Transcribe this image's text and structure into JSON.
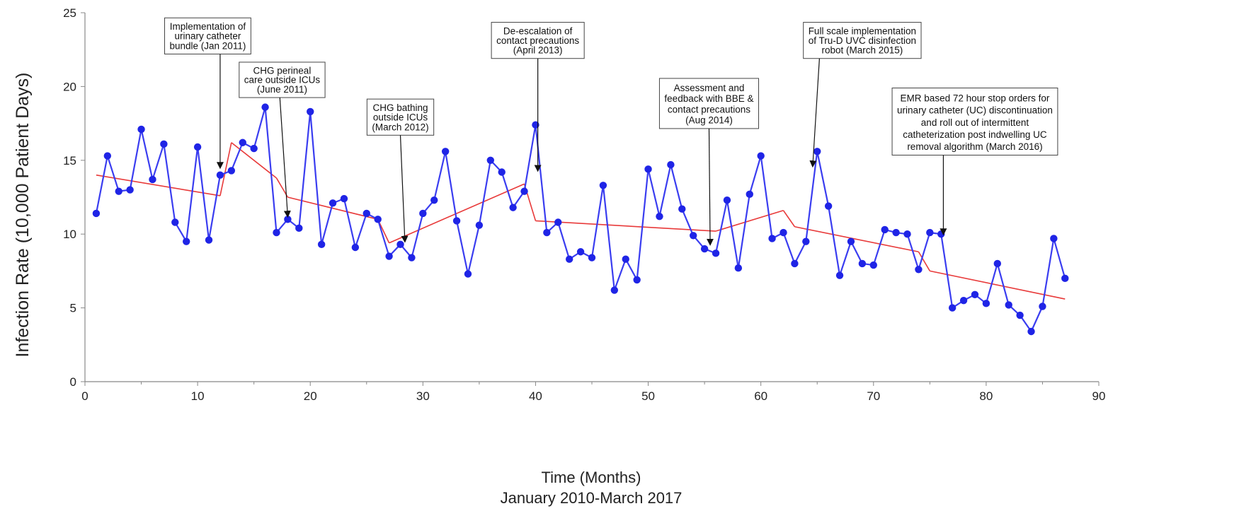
{
  "chart_data": {
    "type": "line",
    "xlabel": "Time (Months)",
    "xlabel_sub": "January 2010-March 2017",
    "ylabel": "Infection Rate (10,000 Patient Days)",
    "xlim": [
      0,
      90
    ],
    "ylim": [
      0,
      25
    ],
    "x_ticks": [
      0,
      10,
      20,
      30,
      40,
      50,
      60,
      70,
      80,
      90
    ],
    "y_ticks": [
      0,
      5,
      10,
      15,
      20,
      25
    ],
    "grid": false,
    "colors": {
      "series": "#3a3df0",
      "marker": "#1f24e6",
      "trend": "#e83a3a"
    },
    "series": [
      {
        "x": [
          1,
          2,
          3,
          4,
          5,
          6,
          7,
          8,
          9,
          10,
          11,
          12,
          13,
          14,
          15,
          16,
          17,
          18,
          19,
          20,
          21,
          22,
          23,
          24,
          25,
          26,
          27,
          28,
          29,
          30,
          31,
          32,
          33,
          34,
          35,
          36,
          37,
          38,
          39,
          40,
          41,
          42,
          43,
          44,
          45,
          46,
          47,
          48,
          49,
          50,
          51,
          52,
          53,
          54,
          55,
          56,
          57,
          58,
          59,
          60,
          61,
          62,
          63,
          64,
          65,
          66,
          67,
          68,
          69,
          70,
          71,
          72,
          73,
          74,
          75,
          76,
          77,
          78,
          79,
          80,
          81,
          82,
          83,
          84,
          85,
          86,
          87
        ],
        "values": [
          11.4,
          15.3,
          12.9,
          13.0,
          17.1,
          13.7,
          16.1,
          10.8,
          9.5,
          15.9,
          9.6,
          14.0,
          14.3,
          16.2,
          15.8,
          18.6,
          10.1,
          11.0,
          10.4,
          18.3,
          9.3,
          12.1,
          12.4,
          9.1,
          11.4,
          11.0,
          8.5,
          9.3,
          8.4,
          11.4,
          12.3,
          15.6,
          10.9,
          7.3,
          10.6,
          15.0,
          14.2,
          11.8,
          12.9,
          17.4,
          10.1,
          10.8,
          8.3,
          8.8,
          8.4,
          13.3,
          6.2,
          8.3,
          6.9,
          14.4,
          11.2,
          14.7,
          11.7,
          9.9,
          9.0,
          8.7,
          12.3,
          7.7,
          12.7,
          15.3,
          9.7,
          10.1,
          8.0,
          9.5,
          15.6,
          11.9,
          7.2,
          9.5,
          8.0,
          7.9,
          10.3,
          10.1,
          10.0,
          7.6,
          10.1,
          10.0,
          5.0,
          5.5,
          5.9,
          5.3,
          8.0,
          5.2,
          4.5,
          3.4,
          5.1,
          9.7,
          7.0
        ]
      }
    ],
    "trend_segments": [
      {
        "x": [
          1,
          12
        ],
        "values": [
          14.0,
          12.6
        ]
      },
      {
        "x": [
          12,
          13
        ],
        "values": [
          12.6,
          16.2
        ]
      },
      {
        "x": [
          13,
          17
        ],
        "values": [
          16.2,
          13.8
        ]
      },
      {
        "x": [
          17,
          18
        ],
        "values": [
          13.8,
          12.5
        ]
      },
      {
        "x": [
          18,
          26
        ],
        "values": [
          12.5,
          11.0
        ]
      },
      {
        "x": [
          26,
          27
        ],
        "values": [
          11.0,
          9.4
        ]
      },
      {
        "x": [
          27,
          39
        ],
        "values": [
          9.4,
          13.4
        ]
      },
      {
        "x": [
          39,
          40
        ],
        "values": [
          13.4,
          10.9
        ]
      },
      {
        "x": [
          40,
          56
        ],
        "values": [
          10.9,
          10.2
        ]
      },
      {
        "x": [
          56,
          62
        ],
        "values": [
          10.2,
          11.6
        ]
      },
      {
        "x": [
          62,
          63
        ],
        "values": [
          11.6,
          10.5
        ]
      },
      {
        "x": [
          63,
          74
        ],
        "values": [
          10.5,
          8.8
        ]
      },
      {
        "x": [
          74,
          75
        ],
        "values": [
          8.8,
          7.5
        ]
      },
      {
        "x": [
          75,
          87
        ],
        "values": [
          7.5,
          5.6
        ]
      }
    ],
    "annotations": [
      {
        "lines": [
          "Implementation of",
          "urinary catheter",
          "bundle (Jan 2011)"
        ],
        "box_x": 10.9,
        "box_top_y": 24.65,
        "box_bottom_y": 22.2,
        "arrow_from": [
          12.0,
          22.2
        ],
        "arrow_to": [
          12.0,
          14.5
        ]
      },
      {
        "lines": [
          "CHG perineal",
          "care outside ICUs",
          "(June 2011)"
        ],
        "box_x": 17.5,
        "box_top_y": 21.65,
        "box_bottom_y": 19.25,
        "arrow_from": [
          17.3,
          19.25
        ],
        "arrow_to": [
          18.0,
          11.2
        ]
      },
      {
        "lines": [
          "CHG bathing",
          "outside ICUs",
          "(March 2012)"
        ],
        "box_x": 28.0,
        "box_top_y": 19.15,
        "box_bottom_y": 16.7,
        "arrow_from": [
          28.0,
          16.7
        ],
        "arrow_to": [
          28.4,
          9.5
        ]
      },
      {
        "lines": [
          "De-escalation of",
          "contact precautions",
          "(April 2013)"
        ],
        "box_x": 40.2,
        "box_top_y": 24.35,
        "box_bottom_y": 21.9,
        "arrow_from": [
          40.2,
          21.9
        ],
        "arrow_to": [
          40.2,
          14.3
        ]
      },
      {
        "lines": [
          "Assessment and",
          "feedback with BBE &",
          "contact precautions",
          "(Aug 2014)"
        ],
        "box_x": 55.4,
        "box_top_y": 20.55,
        "box_bottom_y": 17.15,
        "arrow_from": [
          55.4,
          17.15
        ],
        "arrow_to": [
          55.5,
          9.3
        ]
      },
      {
        "lines": [
          "Full scale implementation",
          "of Tru-D UVC disinfection",
          "robot (March 2015)"
        ],
        "box_x": 69.0,
        "box_top_y": 24.35,
        "box_bottom_y": 21.9,
        "arrow_from": [
          65.2,
          21.9
        ],
        "arrow_to": [
          64.6,
          14.6
        ]
      },
      {
        "lines": [
          "EMR based 72 hour stop orders for",
          "urinary catheter (UC) discontinuation",
          "and roll out of intermittent",
          "catheterization post indwelling UC",
          "removal algorithm (March 2016)"
        ],
        "box_x": 79.0,
        "box_top_y": 19.9,
        "box_bottom_y": 15.35,
        "arrow_from": [
          76.2,
          15.35
        ],
        "arrow_to": [
          76.2,
          10.0
        ]
      }
    ]
  }
}
